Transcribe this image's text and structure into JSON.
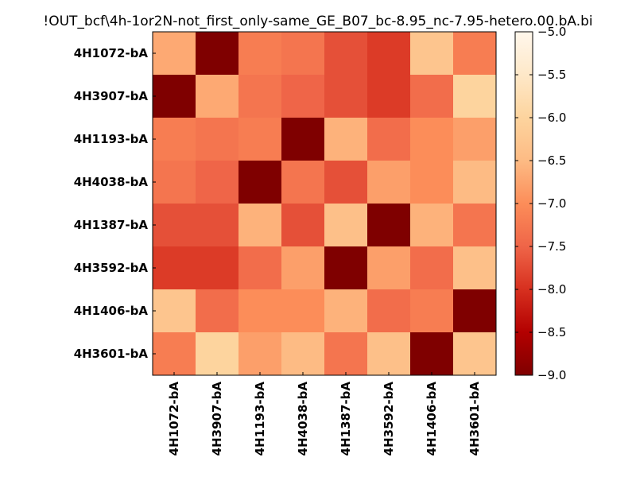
{
  "chart_data": {
    "type": "heatmap",
    "title": "!OUT_bcf\\4h-1or2N-not_first_only-same_GE_B07_bc-8.95_nc-7.95-hetero.00.bA.bi",
    "rows": [
      "4H1072-bA",
      "4H3907-bA",
      "4H1193-bA",
      "4H4038-bA",
      "4H1387-bA",
      "4H3592-bA",
      "4H1406-bA",
      "4H3601-bA"
    ],
    "columns": [
      "4H1072-bA",
      "4H3907-bA",
      "4H1193-bA",
      "4H4038-bA",
      "4H1387-bA",
      "4H3592-bA",
      "4H1406-bA",
      "4H3601-bA"
    ],
    "values": [
      [
        -6.7,
        -9.0,
        -7.2,
        -7.3,
        -7.7,
        -7.9,
        -6.3,
        -7.2
      ],
      [
        -9.0,
        -6.7,
        -7.3,
        -7.5,
        -7.7,
        -7.9,
        -7.4,
        -6.0
      ],
      [
        -7.2,
        -7.3,
        -7.2,
        -9.0,
        -6.6,
        -7.4,
        -7.0,
        -6.8
      ],
      [
        -7.3,
        -7.5,
        -9.0,
        -7.3,
        -7.7,
        -6.8,
        -7.0,
        -6.5
      ],
      [
        -7.7,
        -7.7,
        -6.6,
        -7.7,
        -6.4,
        -9.0,
        -6.6,
        -7.3
      ],
      [
        -7.9,
        -7.9,
        -7.4,
        -6.8,
        -9.0,
        -6.8,
        -7.4,
        -6.4
      ],
      [
        -6.3,
        -7.4,
        -7.0,
        -7.0,
        -6.6,
        -7.4,
        -7.2,
        -9.0
      ],
      [
        -7.2,
        -6.0,
        -6.8,
        -6.5,
        -7.3,
        -6.4,
        -9.0,
        -6.3
      ]
    ],
    "colormap": "OrRd-reversed",
    "colormap_stops": [
      "#7f0000",
      "#b30000",
      "#d7301f",
      "#ef6548",
      "#fc8d59",
      "#fdbb84",
      "#fdd49e",
      "#fee8c8",
      "#fff7ec"
    ],
    "clim": [
      -9.0,
      -5.0
    ],
    "colorbar_ticks": [
      "−5.0",
      "−5.5",
      "−6.0",
      "−6.5",
      "−7.0",
      "−7.5",
      "−8.0",
      "−8.5",
      "−9.0"
    ],
    "colorbar_tick_values": [
      -5.0,
      -5.5,
      -6.0,
      -6.5,
      -7.0,
      -7.5,
      -8.0,
      -8.5,
      -9.0
    ],
    "grid": false,
    "legend": "colorbar-right"
  }
}
